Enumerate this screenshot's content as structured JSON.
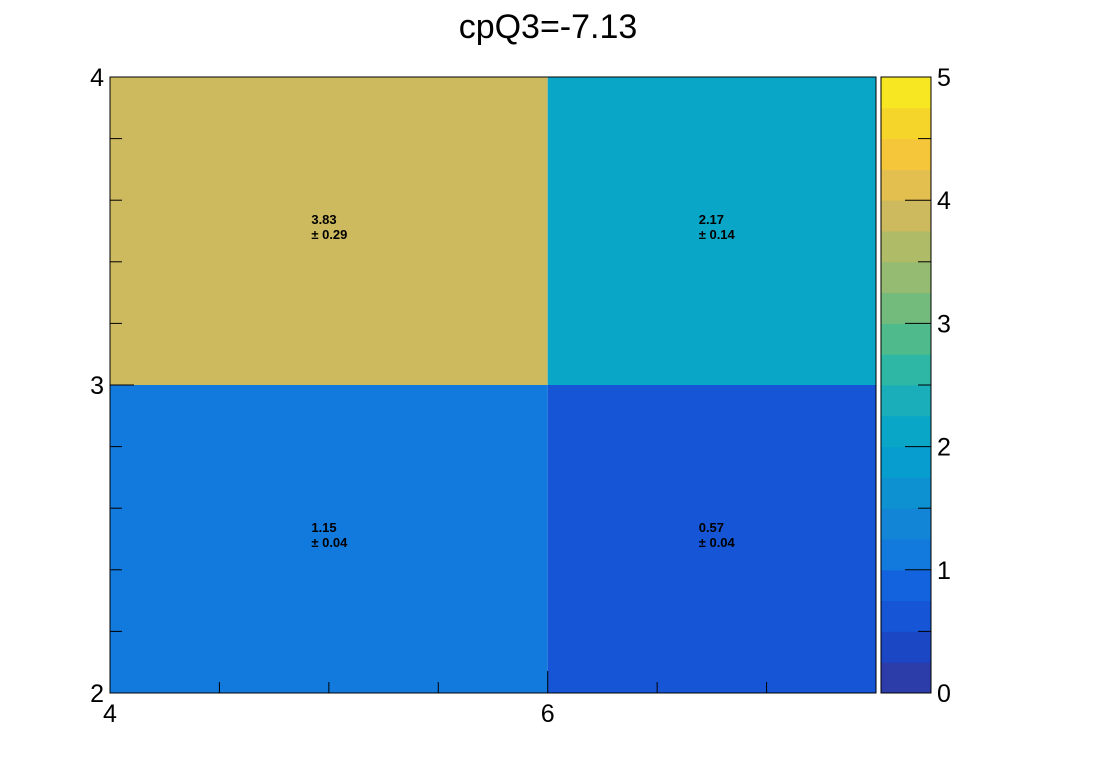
{
  "chart_data": {
    "type": "heatmap",
    "title": "cpQ3=-7.13",
    "xlabel": "",
    "ylabel": "",
    "x_edges": [
      4,
      6,
      7.5
    ],
    "y_edges": [
      2,
      3,
      4
    ],
    "xlim": [
      4,
      7.5
    ],
    "ylim": [
      2,
      4
    ],
    "x_ticks": [
      4,
      6
    ],
    "y_ticks": [
      2,
      3,
      4
    ],
    "zlim": [
      0,
      5
    ],
    "z_ticks": [
      0,
      1,
      2,
      3,
      4,
      5
    ],
    "palette_levels": 20,
    "grid": false,
    "cells": [
      {
        "x0": 4,
        "x1": 6,
        "y0": 3,
        "y1": 4,
        "value": 3.83,
        "error": 0.29,
        "value_text": "3.83",
        "error_text": "± 0.29"
      },
      {
        "x0": 6,
        "x1": 7.5,
        "y0": 3,
        "y1": 4,
        "value": 2.17,
        "error": 0.14,
        "value_text": "2.17",
        "error_text": "± 0.14"
      },
      {
        "x0": 4,
        "x1": 6,
        "y0": 2,
        "y1": 3,
        "value": 1.15,
        "error": 0.04,
        "value_text": "1.15",
        "error_text": "± 0.04"
      },
      {
        "x0": 6,
        "x1": 7.5,
        "y0": 2,
        "y1": 3,
        "value": 0.57,
        "error": 0.04,
        "value_text": "0.57",
        "error_text": "± 0.04"
      }
    ]
  },
  "colors": {
    "palette": [
      "#2c3ca8",
      "#1b46c4",
      "#1555d6",
      "#1263dd",
      "#127add",
      "#1385d6",
      "#0d91d1",
      "#079dcf",
      "#0aa6c8",
      "#1aaebb",
      "#2eb7a4",
      "#4fbb8c",
      "#72bb7d",
      "#95bb73",
      "#b0bb68",
      "#cdb95e",
      "#e2bf4e",
      "#f6c63a",
      "#f6d52b",
      "#f7e722",
      "#f9f81b"
    ]
  }
}
